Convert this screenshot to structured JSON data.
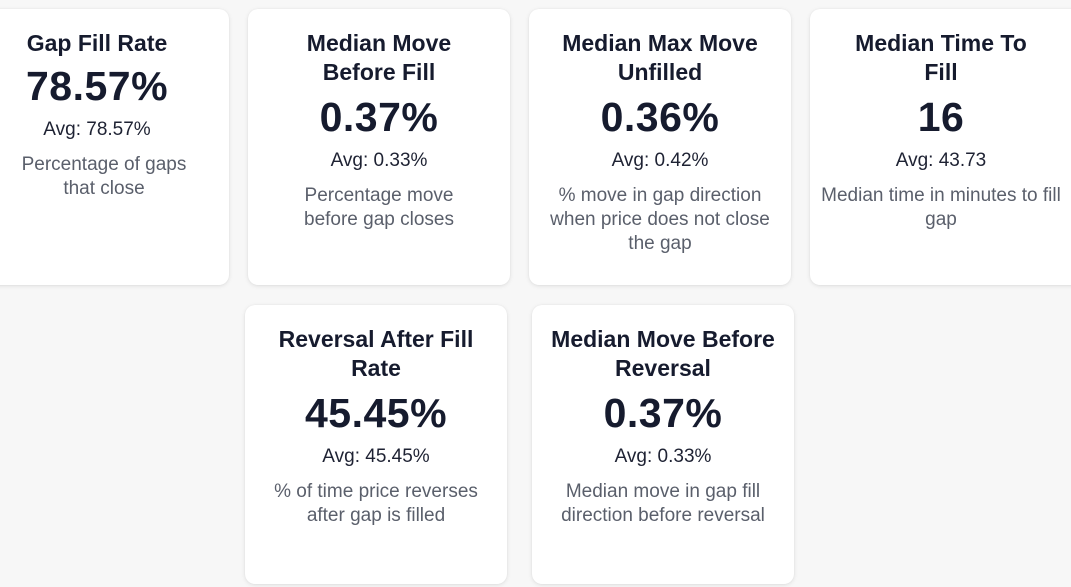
{
  "cards": [
    {
      "title": "Gap Fill Rate",
      "value": "78.57%",
      "avg": "Avg: 78.57%",
      "description": "Percentage of gaps that close"
    },
    {
      "title": "Median Move Before Fill",
      "value": "0.37%",
      "avg": "Avg: 0.33%",
      "description": "Percentage move before gap closes"
    },
    {
      "title": "Median Max Move Unfilled",
      "value": "0.36%",
      "avg": "Avg: 0.42%",
      "description": "% move in gap direction when price does not close the gap"
    },
    {
      "title": "Median Time To Fill",
      "value": "16",
      "avg": "Avg: 43.73",
      "description": "Median time in minutes to fill gap"
    },
    {
      "title": "Reversal After Fill Rate",
      "value": "45.45%",
      "avg": "Avg: 45.45%",
      "description": "% of time price reverses after gap is filled"
    },
    {
      "title": "Median Move Before Reversal",
      "value": "0.37%",
      "avg": "Avg: 0.33%",
      "description": "Median move in gap fill direction before reversal"
    }
  ],
  "colors": {
    "background": "#f7f7f7",
    "card": "#ffffff",
    "title": "#161b2e",
    "description": "#5a5f6b"
  }
}
